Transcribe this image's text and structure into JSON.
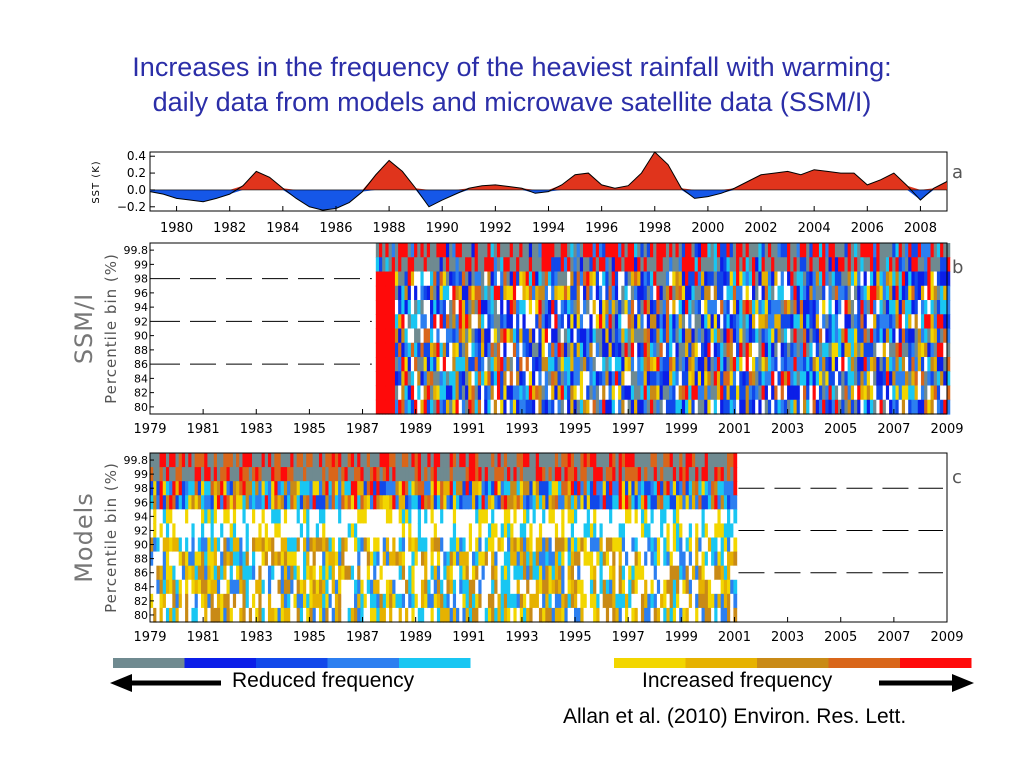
{
  "slide": {
    "title_line1": "Increases in the frequency of the heaviest rainfall with warming:",
    "title_line2": "daily data from models and microwave satellite data (SSM/I)",
    "reduced_label": "Reduced frequency",
    "increased_label": "Increased frequency",
    "citation": "Allan et al. (2010) Environ. Res. Lett."
  },
  "colors": {
    "title": "#2b2ea8",
    "sst_positive": "#e0341c",
    "sst_negative": "#1557e8",
    "colorbar_reduced": [
      "#6f8a90",
      "#0b1ee8",
      "#1148ea",
      "#2c7ff0",
      "#19c6f2"
    ],
    "colorbar_increased": [
      "#f2d600",
      "#e6b200",
      "#c98a16",
      "#d9661a",
      "#ff0a0a"
    ]
  },
  "chart_data": [
    {
      "type": "area",
      "panel_label": "a",
      "ylabel": "SST (K)",
      "y_ticks": [
        "0.4",
        "0.2",
        "0.0",
        "−0.2"
      ],
      "ylim": [
        -0.25,
        0.45
      ],
      "x_ticks": [
        "1980",
        "1982",
        "1984",
        "1986",
        "1988",
        "1990",
        "1992",
        "1994",
        "1996",
        "1998",
        "2000",
        "2002",
        "2004",
        "2006",
        "2008"
      ],
      "xlim": [
        1979.0,
        2009.0
      ],
      "series": [
        {
          "x": [
            1979.0,
            1979.5,
            1980.0,
            1980.5,
            1981.0,
            1981.5,
            1982.0,
            1982.5,
            1983.0,
            1983.5,
            1984.0,
            1984.5,
            1985.0,
            1985.5,
            1986.0,
            1986.5,
            1987.0,
            1987.5,
            1988.0,
            1988.5,
            1989.0,
            1989.5,
            1990.0,
            1990.5,
            1991.0,
            1991.5,
            1992.0,
            1992.5,
            1993.0,
            1993.5,
            1994.0,
            1994.5,
            1995.0,
            1995.5,
            1996.0,
            1996.5,
            1997.0,
            1997.5,
            1998.0,
            1998.5,
            1999.0,
            1999.5,
            2000.0,
            2000.5,
            2001.0,
            2001.5,
            2002.0,
            2002.5,
            2003.0,
            2003.5,
            2004.0,
            2004.5,
            2005.0,
            2005.5,
            2006.0,
            2006.5,
            2007.0,
            2007.5,
            2008.0,
            2008.5,
            2009.0
          ],
          "values": [
            -0.02,
            -0.05,
            -0.1,
            -0.12,
            -0.14,
            -0.1,
            -0.05,
            0.05,
            0.22,
            0.15,
            0.02,
            -0.1,
            -0.2,
            -0.24,
            -0.22,
            -0.15,
            -0.02,
            0.18,
            0.35,
            0.22,
            0.02,
            -0.2,
            -0.12,
            -0.05,
            0.02,
            0.05,
            0.06,
            0.04,
            0.02,
            -0.04,
            -0.02,
            0.06,
            0.18,
            0.2,
            0.06,
            0.02,
            0.05,
            0.2,
            0.45,
            0.3,
            0.02,
            -0.1,
            -0.08,
            -0.04,
            0.02,
            0.1,
            0.18,
            0.2,
            0.22,
            0.18,
            0.24,
            0.22,
            0.2,
            0.2,
            0.06,
            0.12,
            0.2,
            0.05,
            -0.12,
            0.02,
            0.1
          ]
        }
      ]
    },
    {
      "type": "heatmap",
      "panel_label": "b",
      "row_label": "SSM/I",
      "ylabel": "Percentile bin (%)",
      "y_ticks": [
        "99.8",
        "99",
        "98",
        "96",
        "94",
        "92",
        "90",
        "88",
        "86",
        "84",
        "82",
        "80"
      ],
      "x_ticks": [
        "1979",
        "1981",
        "1983",
        "1985",
        "1987",
        "1989",
        "1991",
        "1993",
        "1995",
        "1997",
        "1999",
        "2001",
        "2003",
        "2005",
        "2007",
        "2009"
      ],
      "data_start_year": 1987.5,
      "data_end_year": 2009.0,
      "dashed_lines_at": [
        "98",
        "92",
        "86"
      ]
    },
    {
      "type": "heatmap",
      "panel_label": "c",
      "row_label": "Models",
      "ylabel": "Percentile bin (%)",
      "y_ticks": [
        "99.8",
        "99",
        "98",
        "96",
        "94",
        "92",
        "90",
        "88",
        "86",
        "84",
        "82",
        "80"
      ],
      "x_ticks": [
        "1979",
        "1981",
        "1983",
        "1985",
        "1987",
        "1989",
        "1991",
        "1993",
        "1995",
        "1997",
        "1999",
        "2001",
        "2003",
        "2005",
        "2007",
        "2009"
      ],
      "data_start_year": 1979.0,
      "data_end_year": 2001.0,
      "dashed_lines_at": [
        "98",
        "92",
        "86"
      ]
    }
  ]
}
